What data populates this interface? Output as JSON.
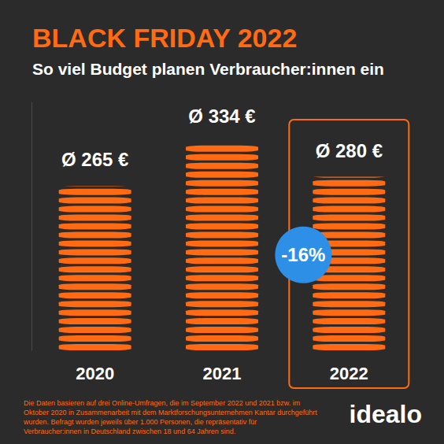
{
  "chart_data": {
    "type": "bar",
    "title": "BLACK FRIDAY 2022",
    "subtitle": "So viel Budget planen Verbraucher:innen ein",
    "categories": [
      "2020",
      "2021",
      "2022"
    ],
    "values": [
      265,
      334,
      280
    ],
    "value_labels": [
      "Ø 265 €",
      "Ø 334 €",
      "Ø 280 €"
    ],
    "data_labels": true,
    "color": "#ff6a13",
    "ylim": [
      0,
      400
    ],
    "tick_labels": "x",
    "grid": false,
    "annotations": [
      {
        "category": "2022",
        "text": "-16%",
        "color": "#2d8fe6"
      }
    ]
  },
  "source_note": "Die Daten basieren auf drei Online-Umfragen, die im September 2022 und 2021 bzw. im Oktober 2020 in Zusammenarbeit mit dem Marktforschungsunternehmen Kantar durchgeführt wurden. Befragt wurden jeweils über 1.000 Personen, die repräsentativ für Verbraucher:innen in Deutschland zwischen 18 und 64 Jahren sind.",
  "logo": "idealo"
}
